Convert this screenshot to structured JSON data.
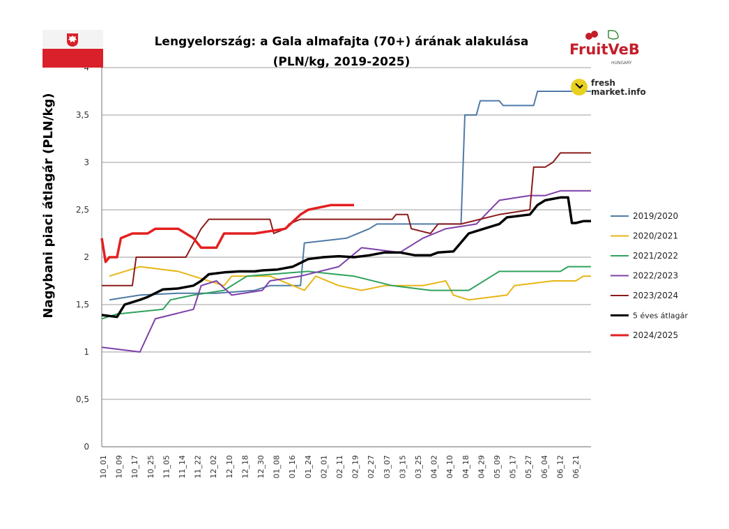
{
  "title_line1": "Lengyelország: a Gala almafajta (70+) árának alakulása",
  "title_line2": "(PLN/kg, 2019-2025)",
  "logos": {
    "fruitveb": "FruitVeB",
    "fruitveb_sub": "HUNGARY",
    "freshmarket_1": "fresh",
    "freshmarket_2": "market.info"
  },
  "chart_data": {
    "type": "line",
    "title": "Lengyelország: a Gala almafajta (70+) árának alakulása (PLN/kg, 2019-2025)",
    "ylabel": "Nagybani piaci átlagár (PLN/kg)",
    "xlabel": "",
    "ylim": [
      0,
      4
    ],
    "yticks": [
      "0",
      "0,5",
      "1",
      "1,5",
      "2",
      "2,5",
      "3",
      "3,5",
      "4"
    ],
    "categories": [
      "10_01",
      "10_09",
      "10_17",
      "10_25",
      "11_05",
      "11_14",
      "11_22",
      "12_02",
      "12_10",
      "12_18",
      "12_30",
      "01_08",
      "01_16",
      "01_24",
      "02_01",
      "02_11",
      "02_19",
      "02_27",
      "03_07",
      "03_15",
      "03_25",
      "04_02",
      "04_10",
      "04_18",
      "04_29",
      "05_09",
      "05_17",
      "05_27",
      "06_04",
      "06_12",
      "06_21"
    ],
    "grid": true,
    "legend_position": "right",
    "series": [
      {
        "name": "2019/2020",
        "color": "#4f7aa6",
        "width": 2,
        "points": [
          [
            1,
            1.55
          ],
          [
            5,
            1.6
          ],
          [
            10,
            1.62
          ],
          [
            15,
            1.62
          ],
          [
            20,
            1.65
          ],
          [
            22,
            1.7
          ],
          [
            26,
            1.7
          ],
          [
            26.5,
            2.15
          ],
          [
            32,
            2.2
          ],
          [
            35,
            2.3
          ],
          [
            36,
            2.35
          ],
          [
            40,
            2.35
          ],
          [
            47,
            2.35
          ],
          [
            47.5,
            3.5
          ],
          [
            49,
            3.5
          ],
          [
            49.5,
            3.65
          ],
          [
            52,
            3.65
          ],
          [
            52.5,
            3.6
          ],
          [
            56.5,
            3.6
          ],
          [
            57,
            3.75
          ],
          [
            62,
            3.75
          ],
          [
            64,
            3.75
          ]
        ]
      },
      {
        "name": "2020/2021",
        "color": "#e8b514",
        "width": 2,
        "points": [
          [
            1,
            1.8
          ],
          [
            5,
            1.9
          ],
          [
            10,
            1.85
          ],
          [
            16,
            1.7
          ],
          [
            17,
            1.8
          ],
          [
            22,
            1.8
          ],
          [
            26.5,
            1.65
          ],
          [
            28,
            1.8
          ],
          [
            31,
            1.7
          ],
          [
            34,
            1.65
          ],
          [
            37,
            1.7
          ],
          [
            42,
            1.7
          ],
          [
            45,
            1.75
          ],
          [
            46,
            1.6
          ],
          [
            48,
            1.55
          ],
          [
            53,
            1.6
          ],
          [
            54,
            1.7
          ],
          [
            59,
            1.75
          ],
          [
            62,
            1.75
          ],
          [
            63,
            1.8
          ],
          [
            64,
            1.8
          ]
        ]
      },
      {
        "name": "2021/2022",
        "color": "#2ea25d",
        "width": 2,
        "points": [
          [
            0,
            1.35
          ],
          [
            2,
            1.4
          ],
          [
            8,
            1.45
          ],
          [
            9,
            1.55
          ],
          [
            12,
            1.6
          ],
          [
            16,
            1.65
          ],
          [
            19,
            1.8
          ],
          [
            27,
            1.85
          ],
          [
            33,
            1.8
          ],
          [
            38,
            1.7
          ],
          [
            43,
            1.65
          ],
          [
            48,
            1.65
          ],
          [
            51,
            1.8
          ],
          [
            52,
            1.85
          ],
          [
            60,
            1.85
          ],
          [
            61,
            1.9
          ],
          [
            64,
            1.9
          ]
        ]
      },
      {
        "name": "2022/2023",
        "color": "#7d3fa8",
        "width": 2,
        "points": [
          [
            0,
            1.05
          ],
          [
            5,
            1.0
          ],
          [
            7,
            1.35
          ],
          [
            12,
            1.45
          ],
          [
            13,
            1.7
          ],
          [
            15,
            1.75
          ],
          [
            17,
            1.6
          ],
          [
            21,
            1.65
          ],
          [
            22,
            1.75
          ],
          [
            26,
            1.8
          ],
          [
            31,
            1.9
          ],
          [
            34,
            2.1
          ],
          [
            39,
            2.05
          ],
          [
            42,
            2.2
          ],
          [
            45,
            2.3
          ],
          [
            49,
            2.35
          ],
          [
            52,
            2.6
          ],
          [
            56,
            2.65
          ],
          [
            58,
            2.65
          ],
          [
            60,
            2.7
          ],
          [
            64,
            2.7
          ]
        ]
      },
      {
        "name": "2023/2024",
        "color": "#8b1a1a",
        "width": 2,
        "points": [
          [
            0,
            1.7
          ],
          [
            4,
            1.7
          ],
          [
            4.5,
            2.0
          ],
          [
            11,
            2.0
          ],
          [
            13,
            2.3
          ],
          [
            14,
            2.4
          ],
          [
            22,
            2.4
          ],
          [
            22.5,
            2.25
          ],
          [
            24,
            2.3
          ],
          [
            24.5,
            2.35
          ],
          [
            26,
            2.4
          ],
          [
            38,
            2.4
          ],
          [
            38.5,
            2.45
          ],
          [
            40,
            2.45
          ],
          [
            40.5,
            2.3
          ],
          [
            43,
            2.25
          ],
          [
            44,
            2.35
          ],
          [
            47,
            2.35
          ],
          [
            52,
            2.45
          ],
          [
            56,
            2.5
          ],
          [
            56.5,
            2.95
          ],
          [
            58,
            2.95
          ],
          [
            59,
            3.0
          ],
          [
            60,
            3.1
          ],
          [
            64,
            3.1
          ]
        ]
      },
      {
        "name": "5 éves átlagár",
        "color": "#000000",
        "width": 3.5,
        "points": [
          [
            0,
            1.39
          ],
          [
            2,
            1.37
          ],
          [
            3,
            1.5
          ],
          [
            5,
            1.55
          ],
          [
            6,
            1.58
          ],
          [
            7,
            1.62
          ],
          [
            8,
            1.66
          ],
          [
            10,
            1.67
          ],
          [
            12,
            1.7
          ],
          [
            13,
            1.75
          ],
          [
            14,
            1.82
          ],
          [
            16,
            1.84
          ],
          [
            18,
            1.85
          ],
          [
            20,
            1.85
          ],
          [
            21,
            1.86
          ],
          [
            23,
            1.87
          ],
          [
            25,
            1.9
          ],
          [
            26,
            1.94
          ],
          [
            27,
            1.98
          ],
          [
            29,
            2.0
          ],
          [
            31,
            2.01
          ],
          [
            33,
            2.0
          ],
          [
            35,
            2.02
          ],
          [
            37,
            2.05
          ],
          [
            39,
            2.05
          ],
          [
            41,
            2.02
          ],
          [
            43,
            2.02
          ],
          [
            44,
            2.05
          ],
          [
            46,
            2.06
          ],
          [
            48,
            2.25
          ],
          [
            50,
            2.3
          ],
          [
            52,
            2.35
          ],
          [
            53,
            2.42
          ],
          [
            56,
            2.45
          ],
          [
            57,
            2.55
          ],
          [
            58,
            2.6
          ],
          [
            60,
            2.63
          ],
          [
            61,
            2.63
          ],
          [
            61.5,
            2.36
          ],
          [
            62,
            2.36
          ],
          [
            63,
            2.38
          ],
          [
            64,
            2.38
          ]
        ]
      },
      {
        "name": "2024/2025",
        "color": "#e41f1f",
        "width": 3.5,
        "points": [
          [
            0,
            2.2
          ],
          [
            0.5,
            1.95
          ],
          [
            1,
            2.0
          ],
          [
            2,
            2.0
          ],
          [
            2.5,
            2.2
          ],
          [
            4,
            2.25
          ],
          [
            6,
            2.25
          ],
          [
            7,
            2.3
          ],
          [
            10,
            2.3
          ],
          [
            11,
            2.25
          ],
          [
            12,
            2.2
          ],
          [
            13,
            2.1
          ],
          [
            15,
            2.1
          ],
          [
            16,
            2.25
          ],
          [
            20,
            2.25
          ],
          [
            24,
            2.3
          ],
          [
            26,
            2.45
          ],
          [
            27,
            2.5
          ],
          [
            30,
            2.55
          ],
          [
            33,
            2.55
          ]
        ]
      }
    ]
  }
}
